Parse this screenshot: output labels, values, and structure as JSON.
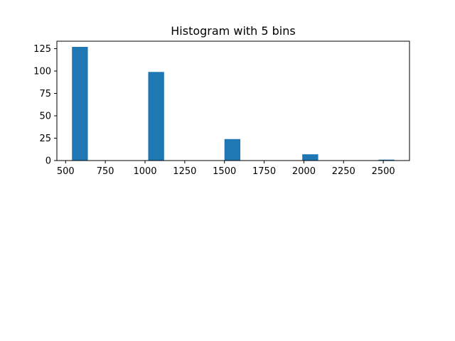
{
  "chart_data": {
    "type": "bar",
    "title": "Histogram with 5 bins",
    "xlabel": "",
    "ylabel": "",
    "bars": [
      {
        "x_start": 540,
        "x_end": 640,
        "value": 127
      },
      {
        "x_start": 1020,
        "x_end": 1120,
        "value": 99
      },
      {
        "x_start": 1500,
        "x_end": 1600,
        "value": 24
      },
      {
        "x_start": 1990,
        "x_end": 2090,
        "value": 7
      },
      {
        "x_start": 2470,
        "x_end": 2570,
        "value": 1
      }
    ],
    "xlim": [
      445,
      2665
    ],
    "ylim": [
      0,
      133.35
    ],
    "x_ticks": [
      500,
      750,
      1000,
      1250,
      1500,
      1750,
      2000,
      2250,
      2500
    ],
    "x_tick_labels": [
      "500",
      "750",
      "1000",
      "1250",
      "1500",
      "1750",
      "2000",
      "2250",
      "2500"
    ],
    "y_ticks": [
      0,
      25,
      50,
      75,
      100,
      125
    ],
    "y_tick_labels": [
      "0",
      "25",
      "50",
      "75",
      "100",
      "125"
    ],
    "bar_color": "#1f77b4",
    "grid": false,
    "legend": "none"
  }
}
